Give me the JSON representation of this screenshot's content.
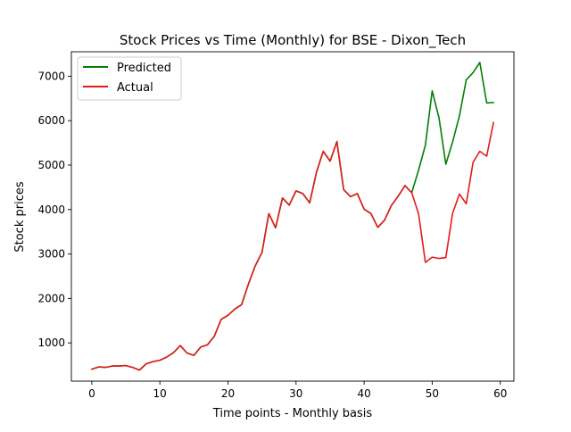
{
  "chart_data": {
    "type": "line",
    "title": "Stock Prices vs Time (Monthly) for BSE - Dixon_Tech",
    "xlabel": "Time points - Monthly basis",
    "ylabel": "Stock prices",
    "xlim": [
      -3,
      62
    ],
    "ylim": [
      140,
      7550
    ],
    "xticks": [
      0,
      10,
      20,
      30,
      40,
      50,
      60
    ],
    "yticks": [
      1000,
      2000,
      3000,
      4000,
      5000,
      6000,
      7000
    ],
    "legend_position": "top-left",
    "grid": false,
    "series": [
      {
        "name": "Predicted",
        "color": "#008000",
        "x": [
          0,
          1,
          2,
          3,
          4,
          5,
          6,
          7,
          8,
          9,
          10,
          11,
          12,
          13,
          14,
          15,
          16,
          17,
          18,
          19,
          20,
          21,
          22,
          23,
          24,
          25,
          26,
          27,
          28,
          29,
          30,
          31,
          32,
          33,
          34,
          35,
          36,
          37,
          38,
          39,
          40,
          41,
          42,
          43,
          44,
          45,
          46,
          47,
          48,
          49,
          50,
          51,
          52,
          53,
          54,
          55,
          56,
          57,
          58,
          59
        ],
        "values": [
          410,
          460,
          450,
          480,
          480,
          490,
          450,
          390,
          530,
          580,
          610,
          680,
          780,
          940,
          770,
          720,
          910,
          960,
          1150,
          1530,
          1620,
          1760,
          1860,
          2320,
          2730,
          3040,
          3910,
          3590,
          4260,
          4100,
          4420,
          4360,
          4150,
          4840,
          5310,
          5090,
          5530,
          4450,
          4290,
          4360,
          4010,
          3910,
          3600,
          3760,
          4090,
          4300,
          4540,
          4380,
          4890,
          5450,
          6670,
          6060,
          5020,
          5520,
          6110,
          6920,
          7080,
          7310,
          6400,
          6410
        ]
      },
      {
        "name": "Actual",
        "color": "#e31a1c",
        "x": [
          0,
          1,
          2,
          3,
          4,
          5,
          6,
          7,
          8,
          9,
          10,
          11,
          12,
          13,
          14,
          15,
          16,
          17,
          18,
          19,
          20,
          21,
          22,
          23,
          24,
          25,
          26,
          27,
          28,
          29,
          30,
          31,
          32,
          33,
          34,
          35,
          36,
          37,
          38,
          39,
          40,
          41,
          42,
          43,
          44,
          45,
          46,
          47,
          48,
          49,
          50,
          51,
          52,
          53,
          54,
          55,
          56,
          57,
          58,
          59
        ],
        "values": [
          410,
          460,
          450,
          480,
          480,
          490,
          450,
          390,
          530,
          580,
          610,
          680,
          780,
          940,
          770,
          720,
          910,
          960,
          1150,
          1530,
          1620,
          1760,
          1860,
          2320,
          2730,
          3040,
          3910,
          3590,
          4260,
          4100,
          4420,
          4360,
          4150,
          4840,
          5310,
          5090,
          5530,
          4450,
          4290,
          4360,
          4010,
          3910,
          3600,
          3760,
          4090,
          4300,
          4540,
          4380,
          3900,
          2810,
          2930,
          2900,
          2920,
          3920,
          4350,
          4130,
          5060,
          5310,
          5200,
          5960
        ]
      }
    ]
  }
}
